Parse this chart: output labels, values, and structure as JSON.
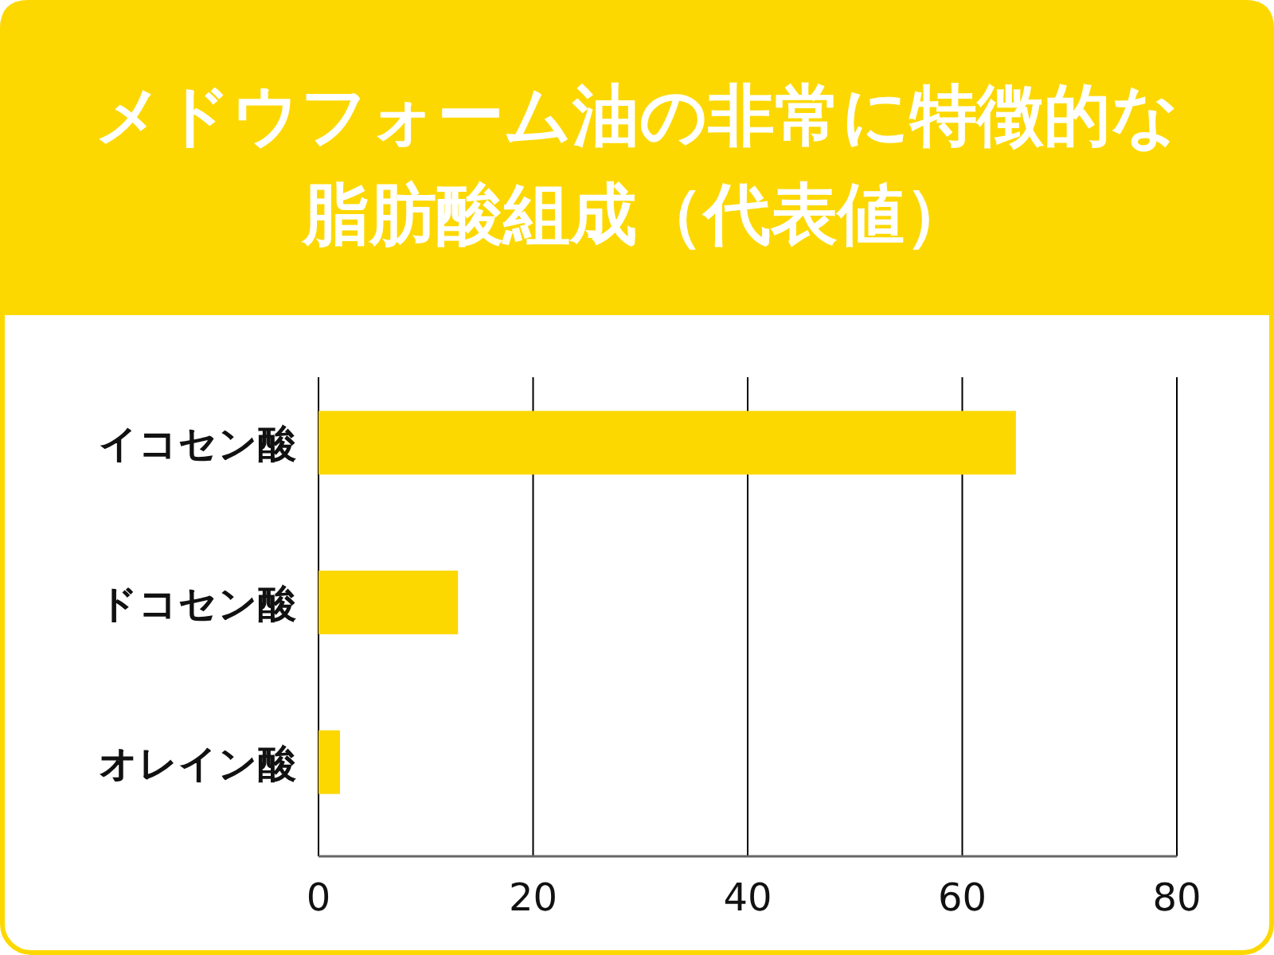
{
  "chart_data": {
    "type": "bar",
    "orientation": "horizontal",
    "title": "メドウフォーム油の非常に特徴的な脂肪酸組成（代表値）",
    "categories": [
      "イコセン酸",
      "ドコセン酸",
      "オレイン酸"
    ],
    "values": [
      65,
      13,
      2
    ],
    "color": "#fcd800",
    "xlim": [
      0,
      80
    ],
    "xticks": [
      0,
      20,
      40,
      60,
      80
    ],
    "grid": "x"
  }
}
